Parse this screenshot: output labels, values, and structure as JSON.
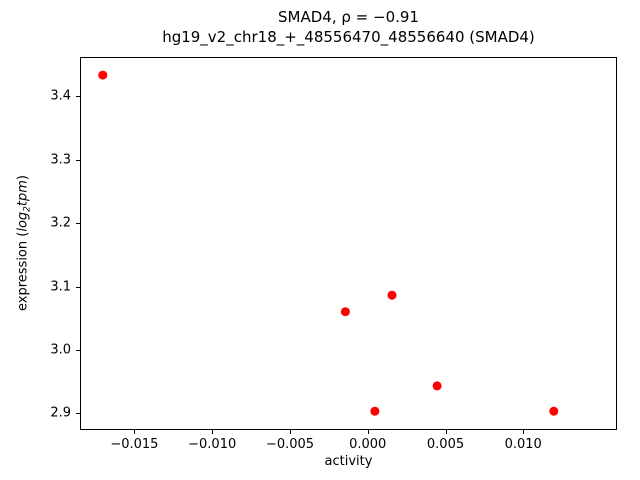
{
  "figure": {
    "title_line1": "SMAD4, ρ = −0.91",
    "title_line2": "hg19_v2_chr18_+_48556470_48556640 (SMAD4)"
  },
  "chart_data": {
    "type": "scatter",
    "title": "SMAD4, ρ = −0.91",
    "subtitle": "hg19_v2_chr18_+_48556470_48556640 (SMAD4)",
    "xlabel": "activity",
    "ylabel": "expression (log₂tpm)",
    "ylabel_prefix": "expression (",
    "ylabel_math": "log",
    "ylabel_sub": "2",
    "ylabel_math2": "tpm",
    "ylabel_suffix": ")",
    "marker_color": "#ff0000",
    "marker_radius": 4.5,
    "grid": false,
    "legend": null,
    "xlim": [
      -0.0185,
      0.0159
    ],
    "ylim": [
      2.877,
      3.462
    ],
    "x_ticks": [
      {
        "value": -0.015,
        "label": "−0.015"
      },
      {
        "value": -0.01,
        "label": "−0.010"
      },
      {
        "value": -0.005,
        "label": "−0.005"
      },
      {
        "value": 0.0,
        "label": "0.000"
      },
      {
        "value": 0.005,
        "label": "0.005"
      },
      {
        "value": 0.01,
        "label": "0.010"
      }
    ],
    "y_ticks": [
      {
        "value": 2.9,
        "label": "2.9"
      },
      {
        "value": 3.0,
        "label": "3.0"
      },
      {
        "value": 3.1,
        "label": "3.1"
      },
      {
        "value": 3.2,
        "label": "3.2"
      },
      {
        "value": 3.3,
        "label": "3.3"
      },
      {
        "value": 3.4,
        "label": "3.4"
      }
    ],
    "points": [
      {
        "x": -0.0171,
        "y": 3.435
      },
      {
        "x": -0.0015,
        "y": 3.062
      },
      {
        "x": 0.0015,
        "y": 3.088
      },
      {
        "x": 0.0004,
        "y": 2.905
      },
      {
        "x": 0.0044,
        "y": 2.945
      },
      {
        "x": 0.0119,
        "y": 2.905
      }
    ]
  }
}
